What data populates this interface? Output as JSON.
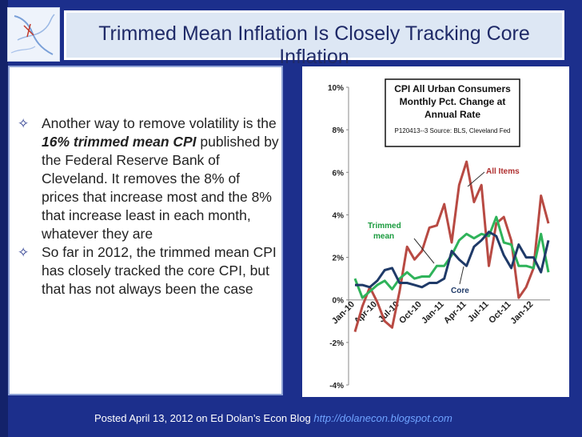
{
  "title": "Trimmed Mean Inflation Is Closely Tracking Core Inflation",
  "bullets": [
    {
      "before": "Another way to remove volatility is the ",
      "emphasis": "16% trimmed mean CPI",
      "after": " published by the Federal Reserve Bank of Cleveland. It removes the 8% of prices that increase most and the 8% that increase least in each month, whatever they are"
    },
    {
      "before": "So far in 2012, the trimmed mean CPI has closely tracked the core CPI, but that has not always been the case",
      "emphasis": "",
      "after": ""
    }
  ],
  "footer": {
    "text": "Posted April 13, 2012 on Ed Dolan’s Econ Blog",
    "link": "http://dolanecon.blogspot.com"
  },
  "colors": {
    "background": "#1c2f8c",
    "all_items": "#b84a43",
    "trimmed_mean": "#2fb35a",
    "core": "#1f3a68"
  },
  "chart_data": {
    "type": "line",
    "title_lines": [
      "CPI All Urban Consumers",
      "Monthly Pct. Change at",
      "Annual Rate"
    ],
    "source": "P120413--3 Source: BLS, Cleveland Fed",
    "ylim": [
      -4,
      10
    ],
    "y_ticks": [
      "10%",
      "8%",
      "6%",
      "4%",
      "2%",
      "0%",
      "-2%",
      "-4%"
    ],
    "x_tick_labels": [
      "Jan-10",
      "Apr-10",
      "Jul-10",
      "Oct-10",
      "Jan-11",
      "Apr-11",
      "Jul-11",
      "Oct-11",
      "Jan-12"
    ],
    "x": [
      "Jan-10",
      "Feb-10",
      "Mar-10",
      "Apr-10",
      "May-10",
      "Jun-10",
      "Jul-10",
      "Aug-10",
      "Sep-10",
      "Oct-10",
      "Nov-10",
      "Dec-10",
      "Jan-11",
      "Feb-11",
      "Mar-11",
      "Apr-11",
      "May-11",
      "Jun-11",
      "Jul-11",
      "Aug-11",
      "Sep-11",
      "Oct-11",
      "Nov-11",
      "Dec-11",
      "Jan-12",
      "Feb-12",
      "Mar-12"
    ],
    "series": [
      {
        "name": "All Items",
        "values": [
          -1.5,
          -0.3,
          0.6,
          -0.1,
          -1.0,
          -1.3,
          0.4,
          2.5,
          1.9,
          2.3,
          3.4,
          3.5,
          4.5,
          2.7,
          5.4,
          6.5,
          4.6,
          5.4,
          1.6,
          3.6,
          3.9,
          2.8,
          0.1,
          0.6,
          1.5,
          4.9,
          3.6
        ]
      },
      {
        "name": "Trimmed mean",
        "values": [
          1.0,
          0.1,
          0.4,
          0.7,
          0.9,
          0.5,
          1.0,
          1.3,
          1.0,
          1.1,
          1.1,
          1.6,
          1.6,
          2.1,
          2.8,
          3.1,
          2.9,
          3.1,
          3.0,
          3.9,
          2.7,
          2.6,
          1.6,
          1.6,
          1.5,
          3.1,
          1.3
        ]
      },
      {
        "name": "Core",
        "values": [
          0.7,
          0.7,
          0.6,
          0.9,
          1.4,
          1.5,
          0.8,
          0.8,
          0.7,
          0.6,
          0.8,
          0.8,
          1.0,
          2.3,
          1.9,
          1.6,
          2.5,
          2.8,
          3.2,
          3.0,
          2.1,
          1.5,
          2.6,
          2.0,
          2.0,
          1.3,
          2.8
        ]
      }
    ],
    "annotations": [
      "All Items",
      "Trimmed mean",
      "Core"
    ],
    "grid": false,
    "legend": "none"
  }
}
